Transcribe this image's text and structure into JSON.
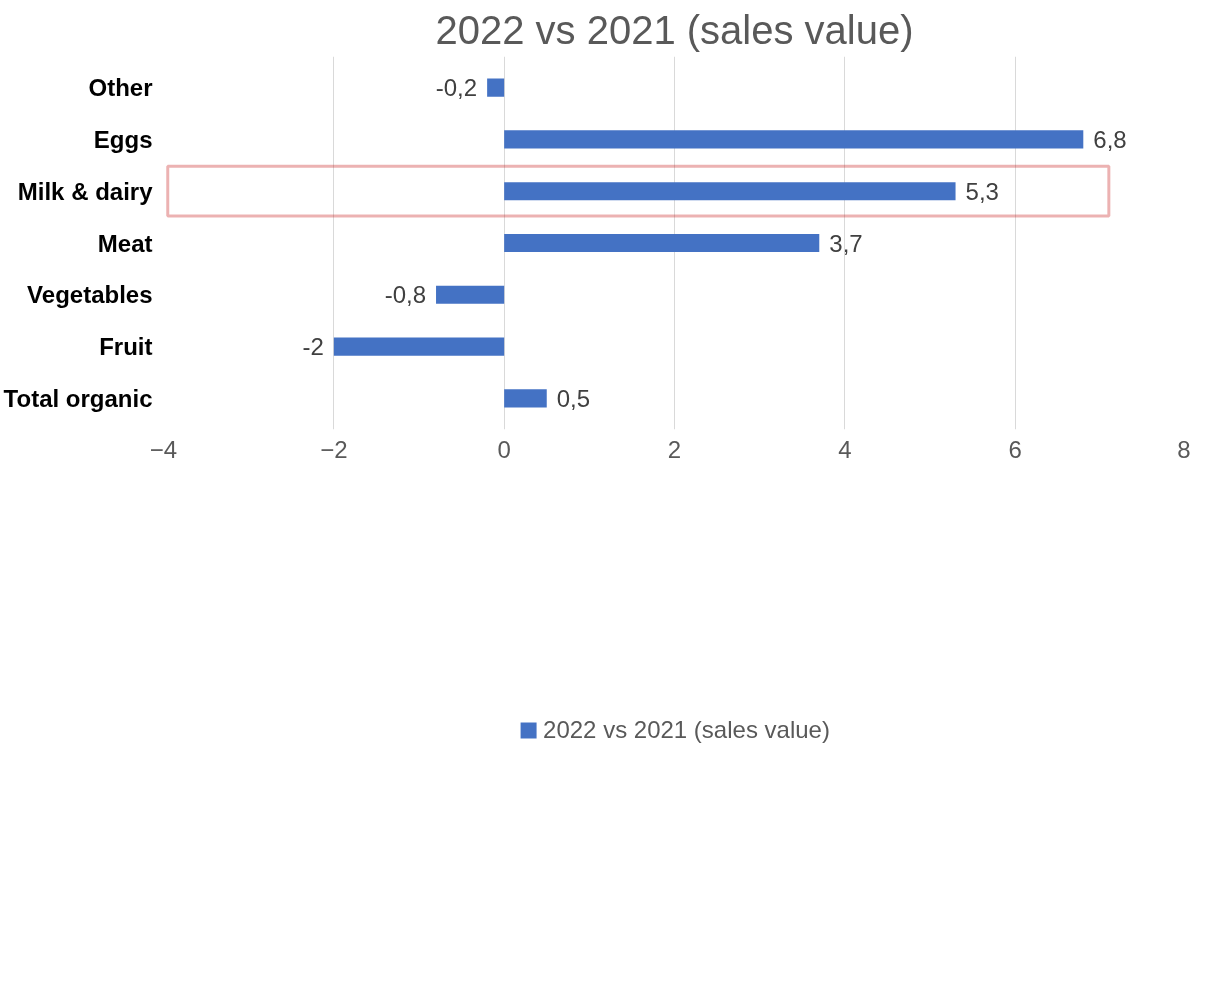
{
  "chart_data": {
    "type": "bar",
    "orientation": "horizontal",
    "title": "2022 vs 2021 (sales value)",
    "categories": [
      "Other",
      "Eggs",
      "Milk & dairy",
      "Meat",
      "Vegetables",
      "Fruit",
      "Total organic"
    ],
    "series": [
      {
        "name": "2022 vs 2021 (sales value)",
        "color": "#4472c4",
        "values": [
          -0.2,
          6.8,
          5.3,
          3.7,
          -0.8,
          -2,
          0.5
        ],
        "value_labels": [
          "-0,2",
          "6,8",
          "5,3",
          "3,7",
          "-0,8",
          "-2",
          "0,5"
        ]
      }
    ],
    "xlim": [
      -4,
      8
    ],
    "xticks": [
      -4,
      -2,
      0,
      2,
      4,
      6,
      8
    ],
    "grid": "x",
    "legend": "bottom"
  }
}
